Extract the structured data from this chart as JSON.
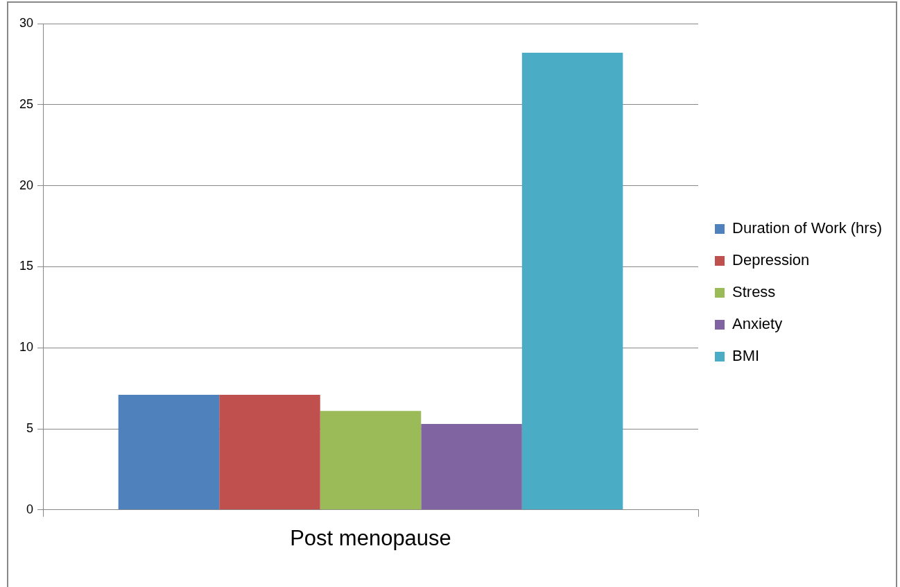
{
  "chart_data": {
    "type": "bar",
    "categories": [
      "Post menopause"
    ],
    "series": [
      {
        "name": "Duration of Work (hrs)",
        "color": "#4f81bd",
        "values": [
          7.1
        ]
      },
      {
        "name": "Depression",
        "color": "#c0504d",
        "values": [
          7.1
        ]
      },
      {
        "name": "Stress",
        "color": "#9bbb59",
        "values": [
          6.1
        ]
      },
      {
        "name": "Anxiety",
        "color": "#8064a2",
        "values": [
          5.3
        ]
      },
      {
        "name": "BMI",
        "color": "#4bacc6",
        "values": [
          28.2
        ]
      }
    ],
    "ylim": [
      0,
      30
    ],
    "yticks": [
      0,
      5,
      10,
      15,
      20,
      25,
      30
    ],
    "grid": "y",
    "legend": "right"
  }
}
